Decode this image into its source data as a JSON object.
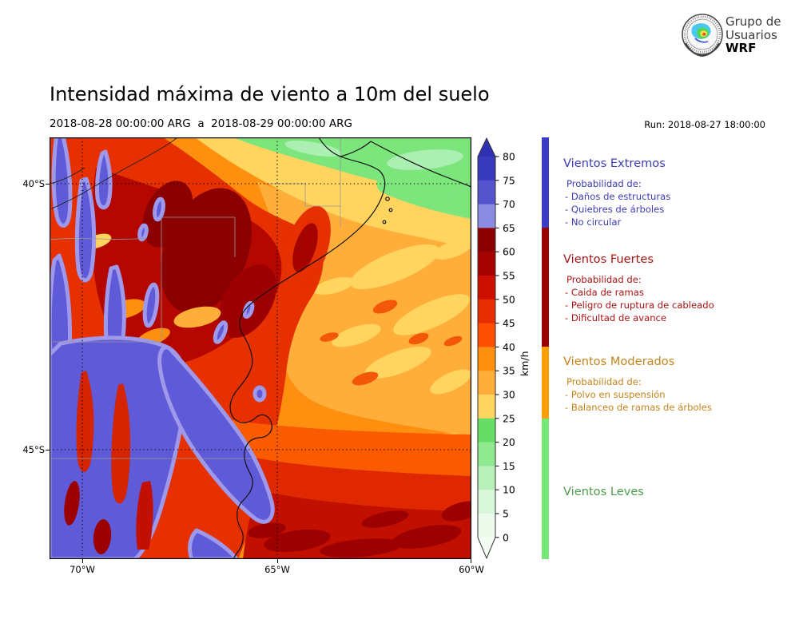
{
  "header": {
    "logo": {
      "line1": "Grupo de",
      "line2": "Usuarios",
      "line3": "WRF"
    },
    "title": "Intensidad máxima de viento a 10m del suelo",
    "subtitle": "2018-08-28 00:00:00 ARG  a  2018-08-29 00:00:00 ARG",
    "run": "Run: 2018-08-27 18:00:00"
  },
  "map": {
    "lat_labels": [
      "40°S",
      "45°S"
    ],
    "lon_labels": [
      "70°W",
      "65°W",
      "60°W"
    ]
  },
  "colorbar": {
    "unit": "km/h",
    "ticks": [
      "80",
      "75",
      "70",
      "65",
      "60",
      "55",
      "50",
      "45",
      "40",
      "35",
      "30",
      "25",
      "20",
      "15",
      "10",
      "5",
      "0"
    ],
    "arrow_up": "#3030B3",
    "arrow_down": "#F4FCF4",
    "segments": [
      "#3939BB",
      "#5454CD",
      "#8B8BE2",
      "#8B0000",
      "#A50300",
      "#CB1000",
      "#E62E00",
      "#FF4F00",
      "#FF8F0E",
      "#FFAE3A",
      "#FFD45F",
      "#66DD66",
      "#90E890",
      "#BAF0BA",
      "#D9F7D9",
      "#ECFBEC"
    ]
  },
  "legend": {
    "thresholds_kmh": [
      65,
      40,
      25
    ],
    "sections": [
      {
        "title": "Vientos Extremos",
        "color": "#3C3CB4",
        "bar_color": "#3B3BC4",
        "prob": "Probabilidad de:",
        "items": [
          "- Daños de estructuras",
          "- Quiebres de árboles",
          "- No circular"
        ]
      },
      {
        "title": "Vientos Fuertes",
        "color": "#A81414",
        "bar_color": "#9B0000",
        "prob": "Probabilidad de:",
        "items": [
          "- Caida de ramas",
          "- Peligro de ruptura de cableado",
          "- Dificultad de avance"
        ]
      },
      {
        "title": "Vientos Moderados",
        "color": "#C4841C",
        "bar_color": "#FFA000",
        "prob": "Probabilidad de:",
        "items": [
          "- Polvo en suspensión",
          "- Balanceo de ramas de árboles"
        ]
      },
      {
        "title": "Vientos Leves",
        "color": "#4F9E4F",
        "bar_color": "#77E877",
        "prob": "",
        "items": []
      }
    ]
  }
}
